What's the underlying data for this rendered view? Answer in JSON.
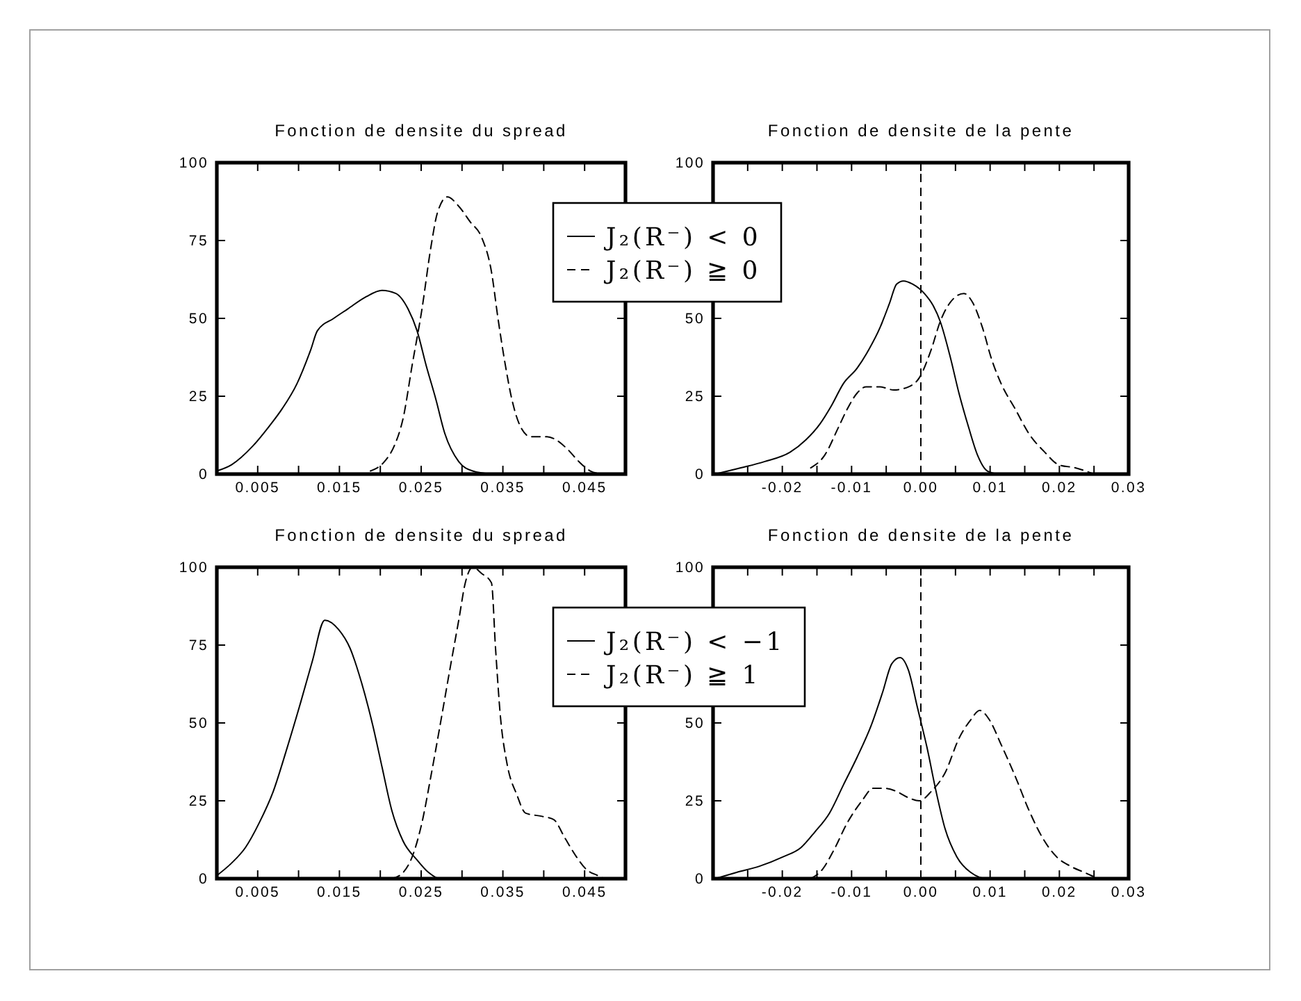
{
  "chart_data": [
    {
      "type": "line",
      "title": "Fonction de densite du spread",
      "xlim": [
        0,
        0.05
      ],
      "xticks": [
        0.005,
        {
          "value": 0.01,
          "label": null
        },
        0.015,
        {
          "value": 0.02,
          "label": null
        },
        0.025,
        {
          "value": 0.03,
          "label": null
        },
        0.035,
        {
          "value": 0.04,
          "label": null
        },
        0.045
      ],
      "ylim": [
        0,
        100
      ],
      "yticks": [
        0,
        25,
        50,
        75,
        100
      ],
      "legend": "top right",
      "series": [
        {
          "name": "J₂(R⁻) < 0",
          "color": "#000000",
          "line_style": "solid",
          "x": [
            0,
            0.0018,
            0.0044,
            0.0063,
            0.008,
            0.0098,
            0.0115,
            0.0123,
            0.0143,
            0.016,
            0.0183,
            0.0202,
            0.0219,
            0.0234,
            0.0245,
            0.0256,
            0.0268,
            0.0279,
            0.0296,
            0.0313,
            0.0336
          ],
          "values": [
            1,
            3,
            9,
            15,
            21,
            29,
            40,
            46,
            50,
            53,
            57,
            59,
            58,
            53,
            46,
            35,
            24,
            13,
            4,
            1,
            0
          ]
        },
        {
          "name": "J₂(R⁻) ≧ 0",
          "color": "#000000",
          "line_style": "dashed",
          "x": [
            0.0188,
            0.0205,
            0.0217,
            0.0228,
            0.0239,
            0.0251,
            0.0262,
            0.027,
            0.0282,
            0.0296,
            0.031,
            0.0324,
            0.0336,
            0.0344,
            0.0353,
            0.0361,
            0.0372,
            0.0384,
            0.0404,
            0.0415,
            0.0429,
            0.0443,
            0.0457,
            0.0472
          ],
          "values": [
            1,
            4,
            9,
            18,
            35,
            53,
            73,
            84,
            89,
            86,
            81,
            76,
            65,
            50,
            35,
            24,
            15,
            12,
            12,
            11,
            8,
            4,
            1,
            0
          ]
        }
      ]
    },
    {
      "type": "line",
      "title": "Fonction de densite de la pente",
      "xlim": [
        -0.03,
        0.03
      ],
      "xticks": [
        {
          "value": -0.025,
          "label": null
        },
        -0.02,
        {
          "value": -0.015,
          "label": null
        },
        -0.01,
        {
          "value": -0.005,
          "label": null
        },
        {
          "value": 0,
          "label": "0.00"
        },
        {
          "value": 0.005,
          "label": null
        },
        0.01,
        {
          "value": 0.015,
          "label": null
        },
        0.02,
        {
          "value": 0.025,
          "label": null
        },
        0.03
      ],
      "ylim": [
        0,
        100
      ],
      "yticks": [
        0,
        25,
        50,
        {
          "value": 75,
          "label": null
        },
        100
      ],
      "ref_lines": [
        {
          "axis": "x",
          "value": 0,
          "line_style": "dashed"
        }
      ],
      "series": [
        {
          "color": "#000000",
          "line_style": "solid",
          "x": [
            -0.0297,
            -0.026,
            -0.0226,
            -0.0189,
            -0.0166,
            -0.0146,
            -0.0129,
            -0.0112,
            -0.0092,
            -0.0075,
            -0.0059,
            -0.0045,
            -0.0035,
            -0.0025,
            -0.0012,
            0.0005,
            0.0018,
            0.0028,
            0.0042,
            0.0055,
            0.0069,
            0.0082,
            0.0096,
            0.0112
          ],
          "values": [
            0,
            2,
            4,
            7,
            11,
            16,
            22,
            29,
            34,
            40,
            47,
            55,
            61,
            62,
            61,
            58,
            54,
            49,
            38,
            26,
            15,
            6,
            1,
            0
          ]
        },
        {
          "color": "#000000",
          "line_style": "dashed",
          "x": [
            -0.0159,
            -0.0139,
            -0.0119,
            -0.0106,
            -0.0092,
            -0.0079,
            -0.0059,
            -0.0039,
            -0.0018,
            -0.0002,
            0.0015,
            0.0028,
            0.0042,
            0.0062,
            0.0075,
            0.0089,
            0.0102,
            0.0116,
            0.0136,
            0.0156,
            0.0179,
            0.0199,
            0.0223,
            0.025
          ],
          "values": [
            2,
            6,
            15,
            21,
            26,
            28,
            28,
            27,
            28,
            31,
            40,
            49,
            55,
            58,
            55,
            47,
            37,
            29,
            21,
            13,
            7,
            3,
            2,
            0
          ]
        }
      ]
    },
    {
      "type": "line",
      "title": "Fonction de densite du spread",
      "xlim": [
        0,
        0.05
      ],
      "xticks": [
        0.005,
        {
          "value": 0.01,
          "label": null
        },
        0.015,
        {
          "value": 0.02,
          "label": null
        },
        0.025,
        {
          "value": 0.03,
          "label": null
        },
        0.035,
        {
          "value": 0.04,
          "label": null
        },
        0.045
      ],
      "ylim": [
        0,
        100
      ],
      "yticks": [
        0,
        25,
        50,
        75,
        100
      ],
      "legend": "top right",
      "series": [
        {
          "name": "J₂(R⁻) < −1",
          "color": "#000000",
          "line_style": "solid",
          "x": [
            0,
            0.0018,
            0.0035,
            0.0052,
            0.0069,
            0.0086,
            0.0103,
            0.0117,
            0.0132,
            0.0149,
            0.0163,
            0.0177,
            0.0191,
            0.0202,
            0.0214,
            0.0228,
            0.0245,
            0.0259,
            0.0273,
            0.029
          ],
          "values": [
            1,
            5,
            10,
            18,
            28,
            42,
            57,
            70,
            83,
            80,
            74,
            63,
            49,
            36,
            22,
            12,
            6,
            2,
            0,
            0
          ]
        },
        {
          "name": "J₂(R⁻) ≧ 1",
          "color": "#000000",
          "line_style": "dashed",
          "x": [
            0.0214,
            0.0228,
            0.0239,
            0.0251,
            0.0262,
            0.0273,
            0.0285,
            0.0296,
            0.0304,
            0.0313,
            0.0324,
            0.0336,
            0.0341,
            0.0347,
            0.0355,
            0.0367,
            0.0378,
            0.0398,
            0.0412,
            0.0426,
            0.044,
            0.0452,
            0.0466,
            0.0474
          ],
          "values": [
            0,
            2,
            7,
            18,
            33,
            49,
            67,
            83,
            95,
            100,
            98,
            95,
            74,
            52,
            37,
            27,
            21,
            20,
            19,
            13,
            7,
            3,
            1,
            0
          ]
        }
      ]
    },
    {
      "type": "line",
      "title": "Fonction de densite de la pente",
      "xlim": [
        -0.03,
        0.03
      ],
      "xticks": [
        {
          "value": -0.025,
          "label": null
        },
        -0.02,
        {
          "value": -0.015,
          "label": null
        },
        -0.01,
        {
          "value": -0.005,
          "label": null
        },
        {
          "value": 0,
          "label": "0.00"
        },
        {
          "value": 0.005,
          "label": null
        },
        0.01,
        {
          "value": 0.015,
          "label": null
        },
        0.02,
        {
          "value": 0.025,
          "label": null
        },
        0.03
      ],
      "ylim": [
        0,
        100
      ],
      "yticks": [
        0,
        25,
        50,
        {
          "value": 75,
          "label": null
        },
        100
      ],
      "ref_lines": [
        {
          "axis": "x",
          "value": 0,
          "line_style": "dashed"
        }
      ],
      "series": [
        {
          "color": "#000000",
          "line_style": "solid",
          "x": [
            -0.0297,
            -0.0266,
            -0.0233,
            -0.0199,
            -0.0173,
            -0.0153,
            -0.0132,
            -0.0112,
            -0.0092,
            -0.0072,
            -0.0055,
            -0.0042,
            -0.003,
            -0.0018,
            -0.0005,
            0.0009,
            0.0022,
            0.0035,
            0.0052,
            0.0072,
            0.0096,
            0.0116
          ],
          "values": [
            0,
            2,
            4,
            7,
            10,
            15,
            21,
            30,
            39,
            49,
            60,
            69,
            71,
            67,
            55,
            42,
            28,
            16,
            7,
            2,
            0,
            0
          ]
        },
        {
          "color": "#000000",
          "line_style": "dashed",
          "x": [
            -0.0159,
            -0.0142,
            -0.0126,
            -0.0106,
            -0.0085,
            -0.0069,
            -0.0052,
            -0.0035,
            -0.0018,
            -0.0002,
            0.0015,
            0.0035,
            0.0055,
            0.0072,
            0.0085,
            0.0099,
            0.0116,
            0.0136,
            0.0156,
            0.0176,
            0.0196,
            0.0216,
            0.0236,
            0.0256
          ],
          "values": [
            0,
            3,
            9,
            18,
            25,
            29,
            29,
            28,
            26,
            25,
            28,
            34,
            45,
            51,
            54,
            51,
            43,
            33,
            22,
            13,
            7,
            4,
            2,
            0
          ]
        }
      ]
    }
  ]
}
